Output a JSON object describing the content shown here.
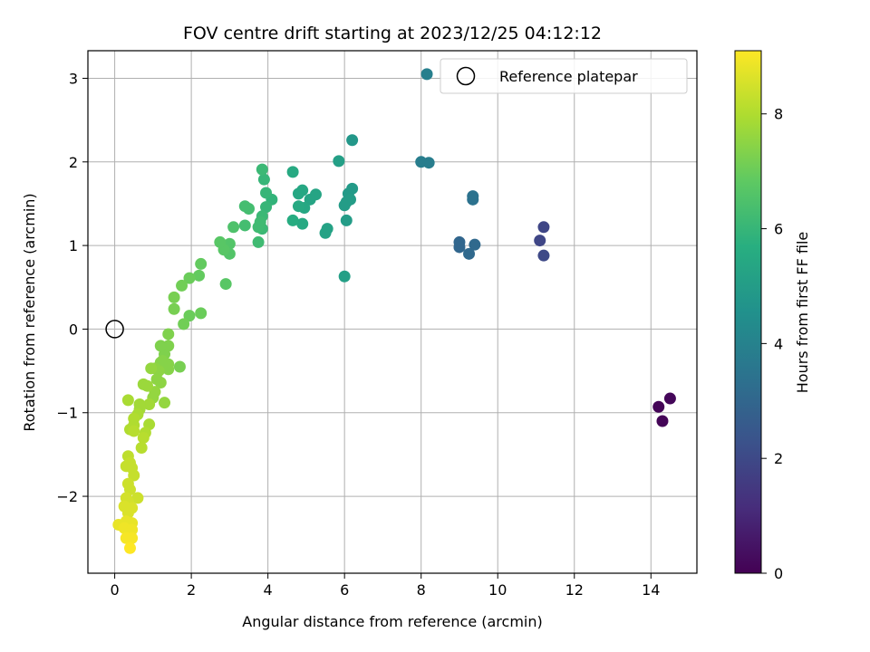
{
  "chart_data": {
    "type": "scatter",
    "title": "FOV centre drift starting at 2023/12/25 04:12:12",
    "xlabel": "Angular distance from reference (arcmin)",
    "ylabel": "Rotation from reference (arcmin)",
    "xlim": [
      -0.7,
      15.2
    ],
    "ylim": [
      -2.92,
      3.33
    ],
    "xticks": [
      0,
      2,
      4,
      6,
      8,
      10,
      12,
      14
    ],
    "yticks": [
      -2,
      -1,
      0,
      1,
      2,
      3
    ],
    "xtick_labels": [
      "0",
      "2",
      "4",
      "6",
      "8",
      "10",
      "12",
      "14"
    ],
    "ytick_labels": [
      "−2",
      "−1",
      "0",
      "1",
      "2",
      "3"
    ],
    "grid": true,
    "legend": {
      "placement": "top-right",
      "entries": [
        "Reference platepar"
      ]
    },
    "reference_point": {
      "x": 0,
      "y": 0,
      "label": "Reference platepar"
    },
    "colorbar": {
      "label": "Hours from first FF file",
      "range": [
        0,
        9.1
      ],
      "ticks": [
        0,
        2,
        4,
        6,
        8
      ],
      "tick_labels": [
        "0",
        "2",
        "4",
        "6",
        "8"
      ],
      "colormap": "viridis"
    },
    "points": [
      {
        "x": 14.2,
        "y": -0.93,
        "c": 0.1
      },
      {
        "x": 14.3,
        "y": -1.1,
        "c": 0.1
      },
      {
        "x": 14.5,
        "y": -0.83,
        "c": 0.15
      },
      {
        "x": 11.1,
        "y": 1.06,
        "c": 1.9
      },
      {
        "x": 11.2,
        "y": 1.22,
        "c": 1.9
      },
      {
        "x": 11.2,
        "y": 0.88,
        "c": 2.0
      },
      {
        "x": 9.0,
        "y": 1.04,
        "c": 3.0
      },
      {
        "x": 9.0,
        "y": 0.98,
        "c": 3.0
      },
      {
        "x": 9.25,
        "y": 0.9,
        "c": 3.1
      },
      {
        "x": 9.4,
        "y": 1.01,
        "c": 3.1
      },
      {
        "x": 9.35,
        "y": 1.59,
        "c": 3.4
      },
      {
        "x": 9.35,
        "y": 1.55,
        "c": 3.4
      },
      {
        "x": 8.0,
        "y": 2.0,
        "c": 3.8
      },
      {
        "x": 8.2,
        "y": 1.99,
        "c": 3.8
      },
      {
        "x": 8.15,
        "y": 3.05,
        "c": 3.9
      },
      {
        "x": 6.2,
        "y": 2.26,
        "c": 4.8
      },
      {
        "x": 6.2,
        "y": 1.68,
        "c": 4.9
      },
      {
        "x": 6.1,
        "y": 1.62,
        "c": 4.9
      },
      {
        "x": 6.15,
        "y": 1.55,
        "c": 5.0
      },
      {
        "x": 6.05,
        "y": 1.52,
        "c": 5.0
      },
      {
        "x": 6.0,
        "y": 1.48,
        "c": 5.0
      },
      {
        "x": 6.05,
        "y": 1.3,
        "c": 5.0
      },
      {
        "x": 6.0,
        "y": 0.63,
        "c": 5.1
      },
      {
        "x": 5.85,
        "y": 2.01,
        "c": 5.1
      },
      {
        "x": 5.55,
        "y": 1.2,
        "c": 5.2
      },
      {
        "x": 5.5,
        "y": 1.15,
        "c": 5.2
      },
      {
        "x": 5.25,
        "y": 1.61,
        "c": 5.3
      },
      {
        "x": 5.1,
        "y": 1.55,
        "c": 5.3
      },
      {
        "x": 4.9,
        "y": 1.66,
        "c": 5.4
      },
      {
        "x": 4.95,
        "y": 1.45,
        "c": 5.4
      },
      {
        "x": 4.8,
        "y": 1.62,
        "c": 5.4
      },
      {
        "x": 4.8,
        "y": 1.47,
        "c": 5.5
      },
      {
        "x": 4.9,
        "y": 1.26,
        "c": 5.5
      },
      {
        "x": 4.65,
        "y": 1.88,
        "c": 5.5
      },
      {
        "x": 4.65,
        "y": 1.3,
        "c": 5.6
      },
      {
        "x": 4.1,
        "y": 1.55,
        "c": 5.9
      },
      {
        "x": 3.95,
        "y": 1.63,
        "c": 6.0
      },
      {
        "x": 3.95,
        "y": 1.46,
        "c": 6.0
      },
      {
        "x": 3.9,
        "y": 1.79,
        "c": 6.0
      },
      {
        "x": 3.85,
        "y": 1.91,
        "c": 6.1
      },
      {
        "x": 3.85,
        "y": 1.35,
        "c": 6.1
      },
      {
        "x": 3.85,
        "y": 1.2,
        "c": 6.1
      },
      {
        "x": 3.8,
        "y": 1.28,
        "c": 6.2
      },
      {
        "x": 3.75,
        "y": 1.22,
        "c": 6.2
      },
      {
        "x": 3.75,
        "y": 1.04,
        "c": 6.2
      },
      {
        "x": 3.5,
        "y": 1.44,
        "c": 6.3
      },
      {
        "x": 3.4,
        "y": 1.47,
        "c": 6.3
      },
      {
        "x": 3.4,
        "y": 1.24,
        "c": 6.3
      },
      {
        "x": 3.1,
        "y": 1.22,
        "c": 6.5
      },
      {
        "x": 3.0,
        "y": 1.02,
        "c": 6.6
      },
      {
        "x": 3.0,
        "y": 0.9,
        "c": 6.6
      },
      {
        "x": 2.85,
        "y": 1.0,
        "c": 6.6
      },
      {
        "x": 2.85,
        "y": 0.95,
        "c": 6.7
      },
      {
        "x": 2.75,
        "y": 1.04,
        "c": 6.7
      },
      {
        "x": 2.9,
        "y": 0.54,
        "c": 6.7
      },
      {
        "x": 2.25,
        "y": 0.78,
        "c": 6.9
      },
      {
        "x": 2.2,
        "y": 0.64,
        "c": 6.9
      },
      {
        "x": 2.25,
        "y": 0.19,
        "c": 7.0
      },
      {
        "x": 1.95,
        "y": 0.61,
        "c": 7.0
      },
      {
        "x": 1.95,
        "y": 0.16,
        "c": 7.0
      },
      {
        "x": 1.75,
        "y": 0.52,
        "c": 7.1
      },
      {
        "x": 1.8,
        "y": 0.06,
        "c": 7.1
      },
      {
        "x": 1.55,
        "y": 0.38,
        "c": 7.2
      },
      {
        "x": 1.55,
        "y": 0.24,
        "c": 7.2
      },
      {
        "x": 1.7,
        "y": -0.45,
        "c": 7.2
      },
      {
        "x": 1.4,
        "y": -0.06,
        "c": 7.3
      },
      {
        "x": 1.4,
        "y": -0.2,
        "c": 7.3
      },
      {
        "x": 1.3,
        "y": -0.3,
        "c": 7.3
      },
      {
        "x": 1.2,
        "y": -0.2,
        "c": 7.3
      },
      {
        "x": 1.25,
        "y": -0.38,
        "c": 7.4
      },
      {
        "x": 1.4,
        "y": -0.42,
        "c": 7.4
      },
      {
        "x": 1.4,
        "y": -0.48,
        "c": 7.4
      },
      {
        "x": 1.2,
        "y": -0.4,
        "c": 7.4
      },
      {
        "x": 1.15,
        "y": -0.5,
        "c": 7.5
      },
      {
        "x": 1.05,
        "y": -0.47,
        "c": 7.5
      },
      {
        "x": 1.2,
        "y": -0.64,
        "c": 7.5
      },
      {
        "x": 1.1,
        "y": -0.6,
        "c": 7.5
      },
      {
        "x": 0.95,
        "y": -0.47,
        "c": 7.6
      },
      {
        "x": 1.3,
        "y": -0.88,
        "c": 7.6
      },
      {
        "x": 1.05,
        "y": -0.75,
        "c": 7.6
      },
      {
        "x": 1.0,
        "y": -0.82,
        "c": 7.6
      },
      {
        "x": 0.75,
        "y": -0.66,
        "c": 7.7
      },
      {
        "x": 0.85,
        "y": -0.68,
        "c": 7.7
      },
      {
        "x": 0.9,
        "y": -0.9,
        "c": 7.8
      },
      {
        "x": 0.65,
        "y": -0.9,
        "c": 7.8
      },
      {
        "x": 0.65,
        "y": -0.96,
        "c": 7.8
      },
      {
        "x": 0.6,
        "y": -1.02,
        "c": 7.9
      },
      {
        "x": 0.9,
        "y": -1.14,
        "c": 7.9
      },
      {
        "x": 0.35,
        "y": -0.85,
        "c": 7.9
      },
      {
        "x": 0.5,
        "y": -1.07,
        "c": 8.0
      },
      {
        "x": 0.5,
        "y": -1.15,
        "c": 8.0
      },
      {
        "x": 0.4,
        "y": -1.2,
        "c": 8.0
      },
      {
        "x": 0.8,
        "y": -1.24,
        "c": 8.0
      },
      {
        "x": 0.75,
        "y": -1.3,
        "c": 8.1
      },
      {
        "x": 0.5,
        "y": -1.22,
        "c": 8.1
      },
      {
        "x": 0.7,
        "y": -1.42,
        "c": 8.1
      },
      {
        "x": 0.35,
        "y": -1.52,
        "c": 8.2
      },
      {
        "x": 0.3,
        "y": -1.64,
        "c": 8.3
      },
      {
        "x": 0.4,
        "y": -1.6,
        "c": 8.3
      },
      {
        "x": 0.45,
        "y": -1.66,
        "c": 8.3
      },
      {
        "x": 0.5,
        "y": -1.75,
        "c": 8.3
      },
      {
        "x": 0.35,
        "y": -1.85,
        "c": 8.4
      },
      {
        "x": 0.4,
        "y": -1.92,
        "c": 8.4
      },
      {
        "x": 0.6,
        "y": -2.02,
        "c": 8.4
      },
      {
        "x": 0.3,
        "y": -2.02,
        "c": 8.5
      },
      {
        "x": 0.35,
        "y": -2.06,
        "c": 8.5
      },
      {
        "x": 0.3,
        "y": -2.1,
        "c": 8.5
      },
      {
        "x": 0.25,
        "y": -2.12,
        "c": 8.6
      },
      {
        "x": 0.45,
        "y": -2.14,
        "c": 8.6
      },
      {
        "x": 0.35,
        "y": -2.2,
        "c": 8.6
      },
      {
        "x": 0.1,
        "y": -2.34,
        "c": 8.8
      },
      {
        "x": 0.3,
        "y": -2.3,
        "c": 8.8
      },
      {
        "x": 0.45,
        "y": -2.32,
        "c": 8.8
      },
      {
        "x": 0.25,
        "y": -2.38,
        "c": 8.9
      },
      {
        "x": 0.45,
        "y": -2.4,
        "c": 8.9
      },
      {
        "x": 0.35,
        "y": -2.45,
        "c": 8.9
      },
      {
        "x": 0.3,
        "y": -2.5,
        "c": 9.0
      },
      {
        "x": 0.45,
        "y": -2.5,
        "c": 9.0
      },
      {
        "x": 0.4,
        "y": -2.62,
        "c": 9.1
      }
    ]
  }
}
